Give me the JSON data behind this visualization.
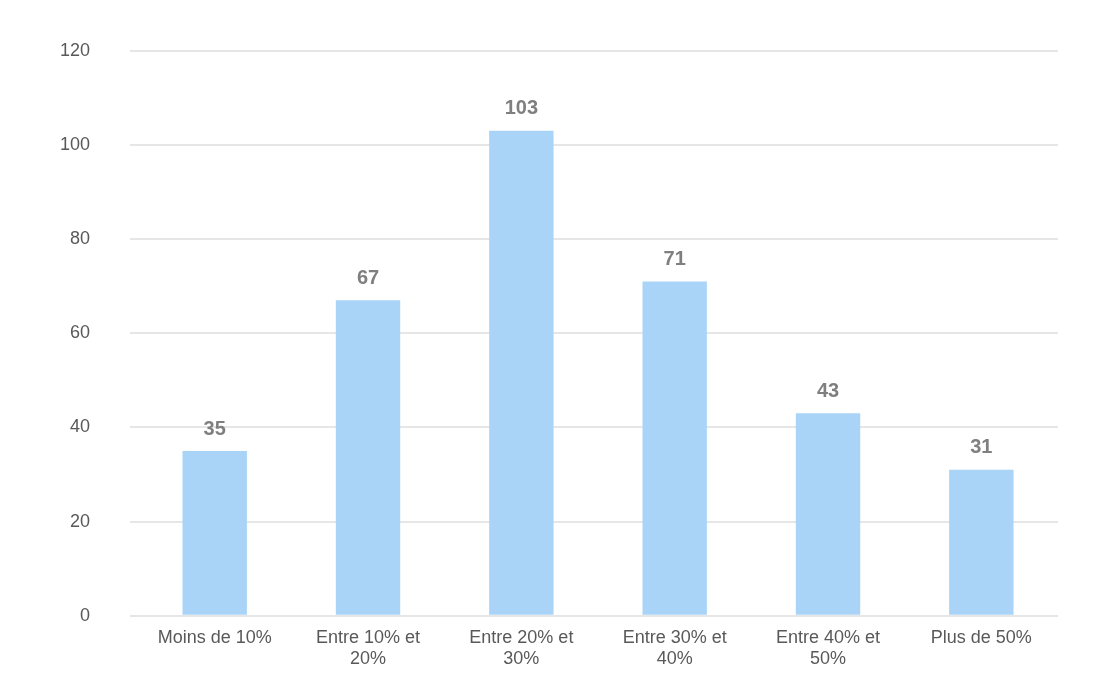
{
  "chart_data": {
    "type": "bar",
    "categories": [
      "Moins de 10%",
      "Entre 10% et 20%",
      "Entre 20% et 30%",
      "Entre 30% et 40%",
      "Entre 40% et 50%",
      "Plus de 50%"
    ],
    "values": [
      35,
      67,
      103,
      71,
      43,
      31
    ],
    "color": "#a9d4f7",
    "ylim": [
      0,
      120
    ],
    "yticks": [
      0,
      20,
      40,
      60,
      80,
      100,
      120
    ],
    "grid": "y",
    "data_labels": true
  }
}
